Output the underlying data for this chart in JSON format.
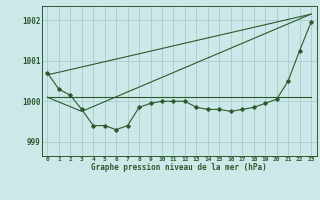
{
  "background_color": "#cce8e8",
  "grid_color": "#aacccc",
  "line_color": "#2d5a2d",
  "title": "Graphe pression niveau de la mer (hPa)",
  "xlim": [
    -0.5,
    23.5
  ],
  "ylim": [
    998.65,
    1002.35
  ],
  "yticks": [
    999,
    1000,
    1001,
    1002
  ],
  "xtick_labels": [
    "0",
    "1",
    "2",
    "3",
    "4",
    "5",
    "6",
    "7",
    "8",
    "9",
    "10",
    "11",
    "12",
    "13",
    "14",
    "15",
    "16",
    "17",
    "18",
    "19",
    "20",
    "21",
    "22",
    "23"
  ],
  "series1_x": [
    0,
    1,
    2,
    3,
    4,
    5,
    6,
    7,
    8,
    9,
    10,
    11,
    12,
    13,
    14,
    15,
    16,
    17,
    18,
    19,
    20,
    21,
    22,
    23
  ],
  "series1_y": [
    1000.7,
    1000.3,
    1000.15,
    999.8,
    999.4,
    999.4,
    999.3,
    999.4,
    999.85,
    999.95,
    1000.0,
    1000.0,
    1000.0,
    999.85,
    999.8,
    999.8,
    999.75,
    999.8,
    999.85,
    999.95,
    1000.05,
    1000.5,
    1001.25,
    1001.95
  ],
  "series2_x": [
    0,
    23
  ],
  "series2_y": [
    1000.1,
    1000.1
  ],
  "series3_x": [
    0,
    23
  ],
  "series3_y": [
    1000.65,
    1002.15
  ],
  "series4_x": [
    0,
    3,
    23
  ],
  "series4_y": [
    1000.1,
    999.75,
    1002.15
  ]
}
